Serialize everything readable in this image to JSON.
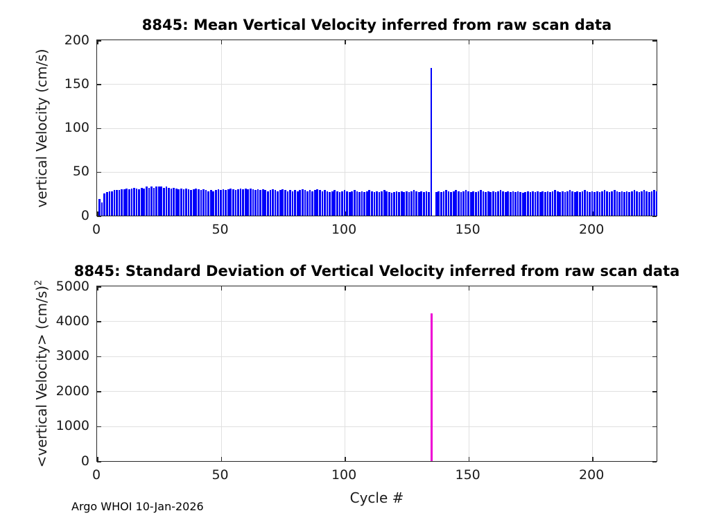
{
  "figure": {
    "footer": "Argo WHOI 10-Jan-2026",
    "xlabel": "Cycle #",
    "colors": {
      "bar_blue": "#0000fa",
      "spike_magenta": "#ee00d4",
      "grid": "#e0e0e0",
      "axis": "#262626",
      "background": "#ffffff"
    }
  },
  "chart_data": [
    {
      "type": "bar",
      "title": "8845: Mean Vertical Velocity inferred from raw scan data",
      "ylabel": "vertical Velocity (cm/s)",
      "ylabel_sup": "",
      "xlabel": "",
      "xlim": [
        0,
        226
      ],
      "ylim": [
        0,
        200
      ],
      "xticks": [
        0,
        50,
        100,
        150,
        200
      ],
      "yticks": [
        0,
        50,
        100,
        150,
        200
      ],
      "grid": true,
      "x_start": 1,
      "bar_color": "#0000fa",
      "values": [
        19,
        15,
        25,
        27,
        28,
        28,
        29,
        29,
        29,
        30,
        30,
        31,
        30,
        31,
        32,
        31,
        30,
        32,
        31,
        33,
        32,
        33,
        32,
        33,
        33,
        33,
        32,
        33,
        32,
        31,
        32,
        31,
        30,
        31,
        30,
        31,
        30,
        29,
        30,
        31,
        30,
        29,
        30,
        29,
        28,
        29,
        28,
        29,
        30,
        29,
        30,
        29,
        30,
        31,
        30,
        29,
        30,
        31,
        30,
        31,
        30,
        31,
        30,
        29,
        30,
        29,
        30,
        29,
        28,
        29,
        30,
        29,
        28,
        29,
        30,
        29,
        28,
        29,
        28,
        29,
        28,
        29,
        30,
        29,
        28,
        29,
        28,
        29,
        30,
        29,
        28,
        29,
        28,
        27,
        28,
        29,
        28,
        27,
        28,
        29,
        28,
        27,
        28,
        29,
        28,
        27,
        28,
        27,
        28,
        29,
        28,
        27,
        28,
        27,
        28,
        29,
        28,
        27,
        26,
        27,
        28,
        27,
        28,
        27,
        28,
        27,
        28,
        29,
        28,
        27,
        28,
        27,
        28,
        27,
        168,
        0,
        27,
        28,
        27,
        28,
        29,
        28,
        27,
        28,
        29,
        28,
        27,
        28,
        29,
        28,
        27,
        28,
        27,
        28,
        29,
        28,
        27,
        28,
        27,
        28,
        27,
        28,
        29,
        28,
        27,
        28,
        27,
        28,
        27,
        28,
        27,
        26,
        27,
        28,
        27,
        28,
        27,
        28,
        27,
        28,
        27,
        28,
        27,
        28,
        29,
        28,
        27,
        28,
        27,
        28,
        29,
        28,
        27,
        28,
        27,
        28,
        29,
        28,
        27,
        28,
        27,
        28,
        27,
        28,
        29,
        28,
        27,
        28,
        29,
        28,
        27,
        28,
        27,
        28,
        27,
        28,
        29,
        28,
        27,
        28,
        29,
        28,
        27,
        28,
        29,
        28
      ]
    },
    {
      "type": "bar",
      "title": "8845: Standard Deviation of Vertical Velocity inferred from raw scan data",
      "ylabel": "<vertical Velocity> (cm/s)",
      "ylabel_sup": "2",
      "xlabel": "Cycle #",
      "xlim": [
        0,
        226
      ],
      "ylim": [
        0,
        5000
      ],
      "xticks": [
        0,
        50,
        100,
        150,
        200
      ],
      "yticks": [
        0,
        1000,
        2000,
        3000,
        4000,
        5000
      ],
      "grid": true,
      "x_start": 1,
      "num_cycles": 226,
      "baseline_value": 0,
      "bar_color": "#ee00d4",
      "spikes": [
        {
          "x": 135,
          "y": 4230
        }
      ]
    }
  ]
}
